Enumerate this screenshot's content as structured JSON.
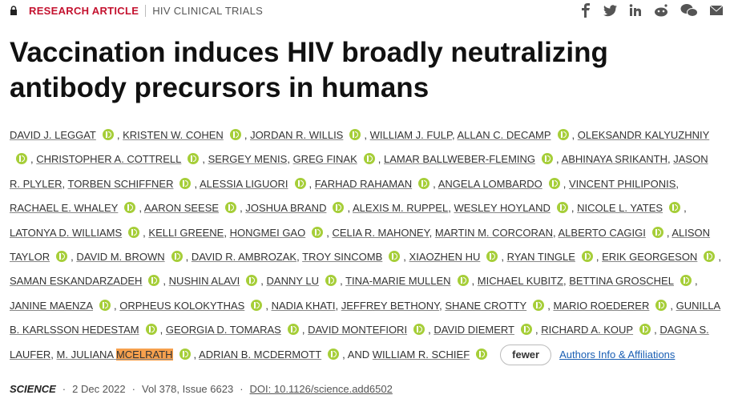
{
  "header": {
    "article_type": "RESEARCH ARTICLE",
    "section": "HIV CLINICAL TRIALS"
  },
  "title": "Vaccination induces HIV broadly neutralizing antibody precursors in humans",
  "authors": {
    "separator": ",",
    "conjunction": "AND",
    "list": [
      {
        "name": "DAVID J. LEGGAT",
        "orcid": true
      },
      {
        "name": "KRISTEN W. COHEN",
        "orcid": true
      },
      {
        "name": "JORDAN R. WILLIS",
        "orcid": true
      },
      {
        "name": "WILLIAM J. FULP",
        "orcid": false
      },
      {
        "name": "ALLAN C. DECAMP",
        "orcid": true
      },
      {
        "name": "OLEKSANDR KALYUZHNIY",
        "orcid": true
      },
      {
        "name": "CHRISTOPHER A. COTTRELL",
        "orcid": true
      },
      {
        "name": "SERGEY MENIS",
        "orcid": false
      },
      {
        "name": "GREG FINAK",
        "orcid": true
      },
      {
        "name": "LAMAR BALLWEBER-FLEMING",
        "orcid": true
      },
      {
        "name": "ABHINAYA SRIKANTH",
        "orcid": false
      },
      {
        "name": "JASON R. PLYLER",
        "orcid": false
      },
      {
        "name": "TORBEN SCHIFFNER",
        "orcid": true
      },
      {
        "name": "ALESSIA LIGUORI",
        "orcid": true
      },
      {
        "name": "FARHAD RAHAMAN",
        "orcid": true
      },
      {
        "name": "ANGELA LOMBARDO",
        "orcid": true
      },
      {
        "name": "VINCENT PHILIPONIS",
        "orcid": false
      },
      {
        "name": "RACHAEL E. WHALEY",
        "orcid": true
      },
      {
        "name": "AARON SEESE",
        "orcid": true
      },
      {
        "name": "JOSHUA BRAND",
        "orcid": true
      },
      {
        "name": "ALEXIS M. RUPPEL",
        "orcid": false
      },
      {
        "name": "WESLEY HOYLAND",
        "orcid": true
      },
      {
        "name": "NICOLE L. YATES",
        "orcid": true
      },
      {
        "name": "LATONYA D. WILLIAMS",
        "orcid": true
      },
      {
        "name": "KELLI GREENE",
        "orcid": false
      },
      {
        "name": "HONGMEI GAO",
        "orcid": true
      },
      {
        "name": "CELIA R. MAHONEY",
        "orcid": false
      },
      {
        "name": "MARTIN M. CORCORAN",
        "orcid": false
      },
      {
        "name": "ALBERTO CAGIGI",
        "orcid": true
      },
      {
        "name": "ALISON TAYLOR",
        "orcid": true
      },
      {
        "name": "DAVID M. BROWN",
        "orcid": true
      },
      {
        "name": "DAVID R. AMBROZAK",
        "orcid": false
      },
      {
        "name": "TROY SINCOMB",
        "orcid": true
      },
      {
        "name": "XIAOZHEN HU",
        "orcid": true
      },
      {
        "name": "RYAN TINGLE",
        "orcid": true
      },
      {
        "name": "ERIK GEORGESON",
        "orcid": true
      },
      {
        "name": "SAMAN ESKANDARZADEH",
        "orcid": true
      },
      {
        "name": "NUSHIN ALAVI",
        "orcid": true
      },
      {
        "name": "DANNY LU",
        "orcid": true
      },
      {
        "name": "TINA-MARIE MULLEN",
        "orcid": true
      },
      {
        "name": "MICHAEL KUBITZ",
        "orcid": false
      },
      {
        "name": "BETTINA GROSCHEL",
        "orcid": true
      },
      {
        "name": "JANINE MAENZA",
        "orcid": true
      },
      {
        "name": "ORPHEUS KOLOKYTHAS",
        "orcid": true
      },
      {
        "name": "NADIA KHATI",
        "orcid": false
      },
      {
        "name": "JEFFREY BETHONY",
        "orcid": false
      },
      {
        "name": "SHANE CROTTY",
        "orcid": true
      },
      {
        "name": "MARIO ROEDERER",
        "orcid": true
      },
      {
        "name": "GUNILLA B. KARLSSON HEDESTAM",
        "orcid": true
      },
      {
        "name": "GEORGIA D. TOMARAS",
        "orcid": true
      },
      {
        "name": "DAVID MONTEFIORI",
        "orcid": true
      },
      {
        "name": "DAVID DIEMERT",
        "orcid": true
      },
      {
        "name": "RICHARD A. KOUP",
        "orcid": true
      },
      {
        "name": "DAGNA S. LAUFER",
        "orcid": false
      },
      {
        "name": "M. JULIANA",
        "highlight": "MCELRATH",
        "orcid": true
      },
      {
        "name": "ADRIAN B. MCDERMOTT",
        "orcid": true
      },
      {
        "name": "WILLIAM R. SCHIEF",
        "orcid": true
      }
    ]
  },
  "fewer_button": "fewer",
  "affiliations_link": "Authors Info & Affiliations",
  "footer": {
    "separator": "·",
    "journal": "SCIENCE",
    "date": "2 Dec 2022",
    "volume": "Vol 378, Issue 6623",
    "doi": "DOI: 10.1126/science.add6502"
  }
}
